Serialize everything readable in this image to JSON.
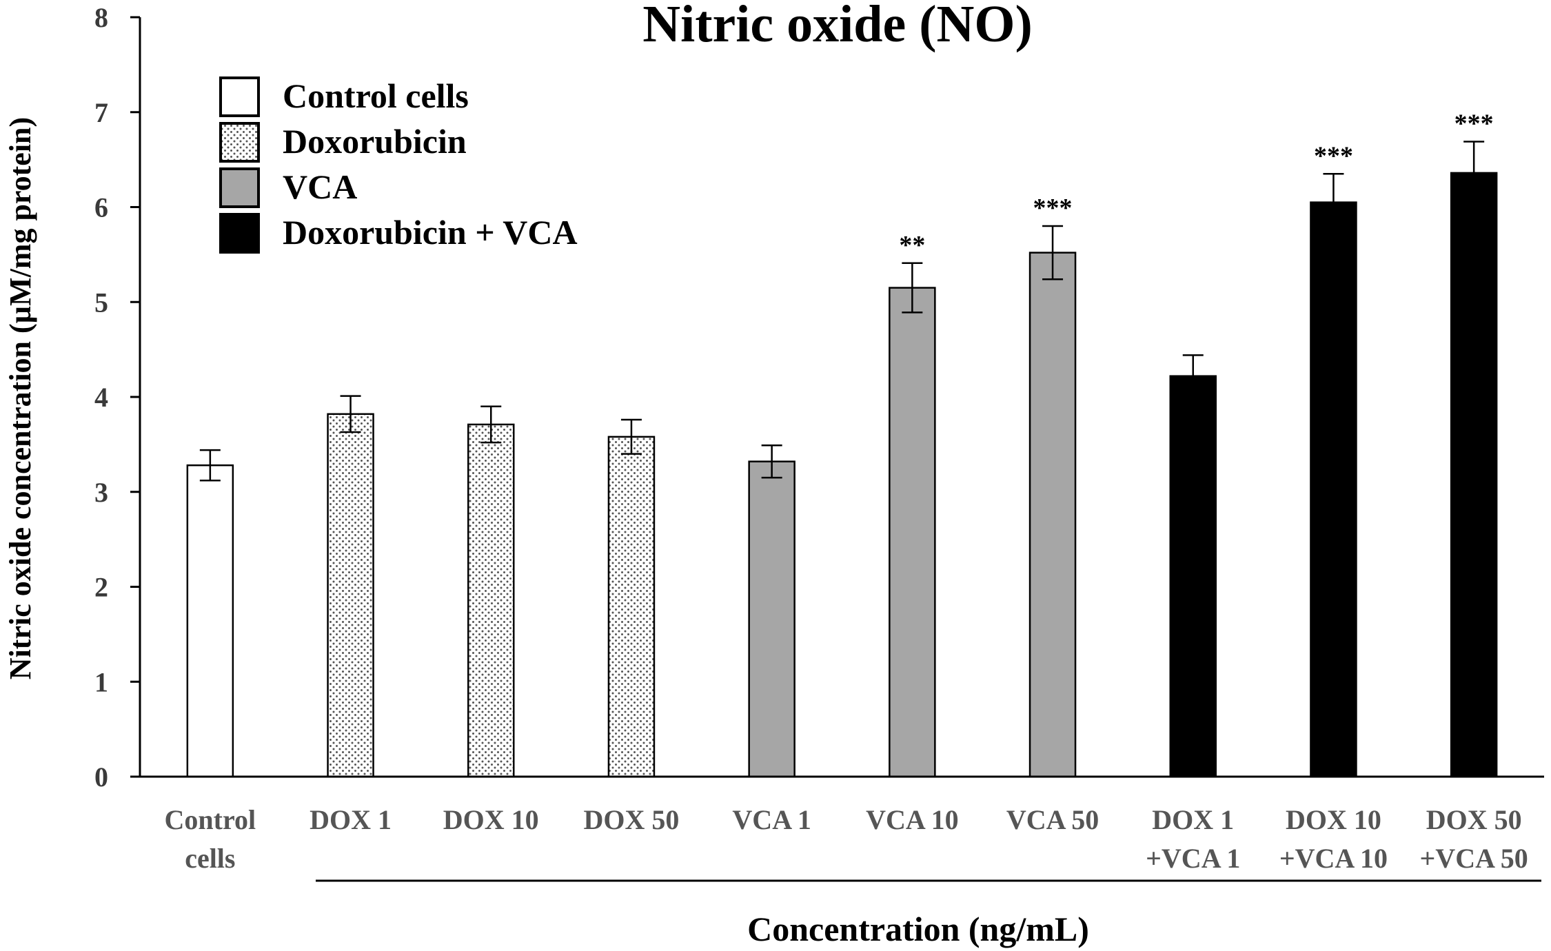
{
  "chart_data": {
    "type": "bar",
    "title": "Nitric oxide (NO)",
    "ylabel": "Nitric oxide concentration (µM/mg protein)",
    "xlabel": "Concentration (ng/mL)",
    "ylim": [
      0,
      8
    ],
    "yticks": [
      "0",
      "1",
      "2",
      "3",
      "4",
      "5",
      "6",
      "7",
      "8"
    ],
    "grid": false,
    "legend_position": "top-left",
    "categories": [
      [
        "Control",
        "cells"
      ],
      [
        "DOX 1"
      ],
      [
        "DOX 10"
      ],
      [
        "DOX 50"
      ],
      [
        "VCA 1"
      ],
      [
        "VCA 10"
      ],
      [
        "VCA 50"
      ],
      [
        "DOX 1",
        "+VCA 1"
      ],
      [
        "DOX 10",
        "+VCA 10"
      ],
      [
        "DOX 50",
        "+VCA 50"
      ]
    ],
    "values": [
      3.28,
      3.82,
      3.71,
      3.58,
      3.32,
      5.15,
      5.52,
      4.22,
      6.05,
      6.36
    ],
    "errors": [
      0.16,
      0.19,
      0.19,
      0.18,
      0.17,
      0.26,
      0.28,
      0.22,
      0.3,
      0.33
    ],
    "groups": [
      0,
      1,
      1,
      1,
      2,
      2,
      2,
      3,
      3,
      3
    ],
    "significance": [
      "",
      "",
      "",
      "",
      "",
      "**",
      "***",
      "",
      "***",
      "***"
    ],
    "legend": [
      {
        "label": "Control cells",
        "fill": "#ffffff",
        "pattern": "none"
      },
      {
        "label": "Doxorubicin",
        "fill": "#ffffff",
        "pattern": "dots"
      },
      {
        "label": "VCA",
        "fill": "#a6a6a6",
        "pattern": "none"
      },
      {
        "label": "Doxorubicin + VCA",
        "fill": "#000000",
        "pattern": "none"
      }
    ],
    "colors": {
      "axis": "#000000",
      "bar_outline": "#000000",
      "dots": "#555555"
    }
  }
}
